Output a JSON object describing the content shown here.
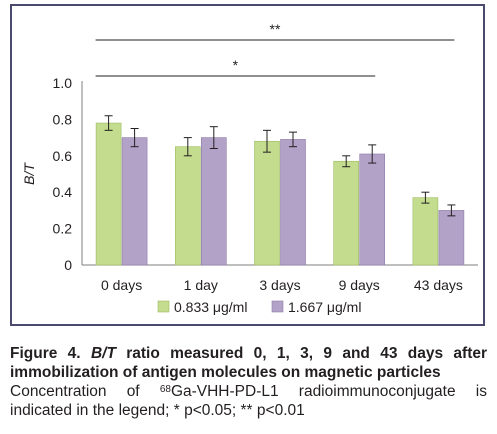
{
  "chart_data": {
    "type": "bar",
    "ylabel": "B/T",
    "ylim": [
      0,
      1.0
    ],
    "yticks": [
      "0",
      "0.2",
      "0.4",
      "0.6",
      "0.8",
      "1.0"
    ],
    "categories": [
      "0 days",
      "1 day",
      "3 days",
      "9 days",
      "43 days"
    ],
    "series": [
      {
        "name": "0.833 μg/ml",
        "color": "#c3dc8e",
        "edge": "#9dbb62",
        "values": [
          0.78,
          0.65,
          0.68,
          0.57,
          0.37
        ],
        "errors": [
          0.04,
          0.05,
          0.06,
          0.03,
          0.03
        ]
      },
      {
        "name": "1.667 μg/ml",
        "color": "#b3a2c7",
        "edge": "#8e7aab",
        "values": [
          0.7,
          0.7,
          0.69,
          0.61,
          0.3
        ],
        "errors": [
          0.05,
          0.06,
          0.04,
          0.05,
          0.03
        ]
      }
    ],
    "significance": [
      {
        "from": "0 days",
        "to": "43 days",
        "label": "**"
      },
      {
        "from": "0 days",
        "to": "9 days",
        "label": "*"
      }
    ],
    "legend_position": "bottom",
    "grid": false
  },
  "caption": {
    "figure_label": "Figure 4.",
    "bt": "B/T",
    "title_line1_rest": "ratio measured 0, 1, 3, 9 and 43 days after",
    "title_line2": "immobilization of antigen molecules on magnetic particles",
    "body_line1_pre": "Concentration of",
    "isotope_mass": "68",
    "body_line1_post": "Ga-VHH-PD-L1 radioimmunoconjugate is",
    "body_line2": "indicated in the legend; * p<0.05; ** p<0.01"
  }
}
